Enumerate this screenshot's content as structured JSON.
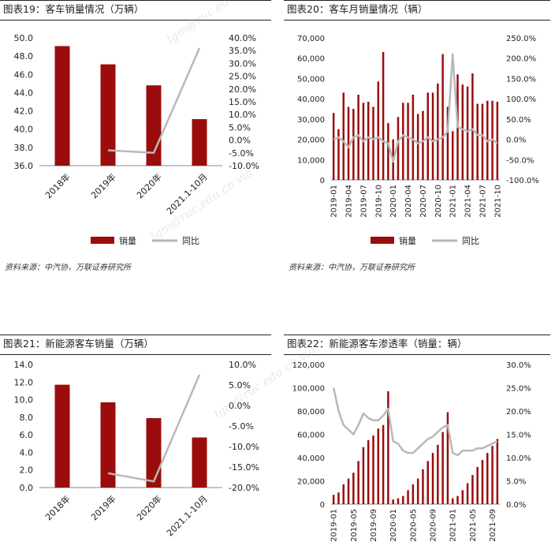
{
  "colors": {
    "bar": "#9b0d0d",
    "line": "#b8b8b8",
    "axis": "#888888",
    "text": "#222222"
  },
  "watermark_text": "lgm@ruc.edu.cn via",
  "charts": [
    {
      "id": "c19",
      "title": "图表19：客车销量情况（万辆）",
      "source": "资料来源：中汽协，万联证券研究所",
      "legend": {
        "bar": "销量",
        "line": "同比"
      },
      "chart_data": {
        "type": "bar",
        "categories": [
          "2018年",
          "2019年",
          "2020年",
          "2021.1-10月"
        ],
        "series": [
          {
            "name": "销量",
            "axis": "left",
            "values": [
              49.1,
              47.1,
              44.8,
              41.1
            ]
          },
          {
            "name": "同比",
            "axis": "right",
            "type": "line",
            "values": [
              null,
              -4.0,
              -5.0,
              36.0
            ]
          }
        ],
        "yleft": {
          "min": 36,
          "max": 50,
          "step": 2,
          "format": "fixed1"
        },
        "yright": {
          "min": -10,
          "max": 40,
          "step": 5,
          "format": "pct1"
        },
        "legend_position": "bottom"
      }
    },
    {
      "id": "c20",
      "title": "图表20：客车月销量情况（辆）",
      "source": "资料来源：中汽协，万联证券研究所",
      "legend": {
        "bar": "销量",
        "line": "同比"
      },
      "chart_data": {
        "type": "bar",
        "categories": [
          "2019-01",
          "2019-02",
          "2019-03",
          "2019-04",
          "2019-05",
          "2019-06",
          "2019-07",
          "2019-08",
          "2019-09",
          "2019-10",
          "2019-11",
          "2019-12",
          "2020-01",
          "2020-02",
          "2020-03",
          "2020-04",
          "2020-05",
          "2020-06",
          "2020-07",
          "2020-08",
          "2020-09",
          "2020-10",
          "2020-11",
          "2020-12",
          "2021-01",
          "2021-02",
          "2021-03",
          "2021-04",
          "2021-05",
          "2021-06",
          "2021-07",
          "2021-08",
          "2021-09",
          "2021-10"
        ],
        "tick_labels": [
          "2019-01",
          "2019-04",
          "2019-07",
          "2019-10",
          "2020-01",
          "2020-04",
          "2020-07",
          "2020-10",
          "2021-01",
          "2021-04",
          "2021-07",
          "2021-10"
        ],
        "series": [
          {
            "name": "销量",
            "axis": "left",
            "values": [
              33000,
              25000,
              43000,
              36000,
              35000,
              42000,
              38000,
              38500,
              36000,
              48500,
              63000,
              28000,
              20000,
              31000,
              38000,
              38000,
              42000,
              32500,
              34000,
              43000,
              43000,
              47500,
              62000,
              36000,
              24000,
              52000,
              47000,
              46000,
              52500,
              37500,
              37500,
              39000,
              39000,
              38500
            ]
          },
          {
            "name": "同比",
            "axis": "right",
            "type": "line",
            "values": [
              0,
              5,
              -5,
              -20,
              5,
              10,
              -5,
              5,
              0,
              5,
              -5,
              -10,
              -55,
              -5,
              10,
              5,
              0,
              -10,
              -5,
              5,
              -5,
              0,
              5,
              20,
              210,
              30,
              25,
              20,
              25,
              10,
              10,
              -5,
              0,
              -10
            ]
          }
        ],
        "yleft": {
          "min": 0,
          "max": 70000,
          "step": 10000,
          "format": "comma"
        },
        "yright": {
          "min": -100,
          "max": 250,
          "step": 50,
          "format": "pct1"
        },
        "legend_position": "bottom"
      }
    },
    {
      "id": "c21",
      "title": "图表21：新能源客车销量（万辆）",
      "source": "",
      "legend": {
        "bar": "",
        "line": ""
      },
      "chart_data": {
        "type": "bar",
        "categories": [
          "2018年",
          "2019年",
          "2020年",
          "2021.1-10月"
        ],
        "series": [
          {
            "name": "",
            "axis": "left",
            "values": [
              11.7,
              9.7,
              7.9,
              5.7
            ]
          },
          {
            "name": "",
            "axis": "right",
            "type": "line",
            "values": [
              null,
              -16.5,
              -18.5,
              7.5
            ]
          }
        ],
        "yleft": {
          "min": 0,
          "max": 14,
          "step": 2,
          "format": "fixed1"
        },
        "yright": {
          "min": -20,
          "max": 10,
          "step": 5,
          "format": "pct1"
        },
        "legend_position": "bottom"
      }
    },
    {
      "id": "c22",
      "title": "图表22：新能源客车渗透率（销量：辆）",
      "source": "",
      "legend": {
        "bar": "",
        "line": ""
      },
      "chart_data": {
        "type": "bar",
        "categories": [
          "2019-01",
          "2019-02",
          "2019-03",
          "2019-04",
          "2019-05",
          "2019-06",
          "2019-07",
          "2019-08",
          "2019-09",
          "2019-10",
          "2019-11",
          "2019-12",
          "2020-01",
          "2020-02",
          "2020-03",
          "2020-04",
          "2020-05",
          "2020-06",
          "2020-07",
          "2020-08",
          "2020-09",
          "2020-10",
          "2020-11",
          "2020-12",
          "2021-01",
          "2021-02",
          "2021-03",
          "2021-04",
          "2021-05",
          "2021-06",
          "2021-07",
          "2021-08",
          "2021-09",
          "2021-10"
        ],
        "tick_labels": [
          "2019-01",
          "2019-05",
          "2019-09",
          "2020-01",
          "2020-05",
          "2020-09",
          "2021-01",
          "2021-05",
          "2021-09"
        ],
        "series": [
          {
            "name": "",
            "axis": "left",
            "values": [
              8000,
              10000,
              17000,
              22000,
              27000,
              37000,
              49000,
              55000,
              59000,
              65000,
              68000,
              97000,
              4000,
              5000,
              7000,
              12000,
              17000,
              22000,
              30000,
              37000,
              44000,
              51000,
              62000,
              79000,
              5000,
              7000,
              12000,
              18000,
              25000,
              32000,
              38000,
              44000,
              50000,
              56000
            ]
          },
          {
            "name": "",
            "axis": "right",
            "type": "line",
            "values": [
              25.0,
              20.0,
              17.0,
              16.0,
              15.0,
              17.0,
              19.5,
              18.5,
              18.0,
              18.0,
              19.0,
              20.5,
              13.5,
              13.0,
              11.5,
              11.0,
              11.0,
              12.0,
              13.0,
              14.0,
              14.5,
              15.5,
              16.5,
              17.0,
              11.0,
              10.5,
              11.5,
              11.5,
              11.5,
              12.0,
              12.0,
              12.5,
              13.0,
              13.5
            ]
          }
        ],
        "yleft": {
          "min": 0,
          "max": 120000,
          "step": 20000,
          "format": "comma"
        },
        "yright": {
          "min": 0,
          "max": 30,
          "step": 5,
          "format": "pct1"
        },
        "legend_position": "none"
      }
    }
  ]
}
